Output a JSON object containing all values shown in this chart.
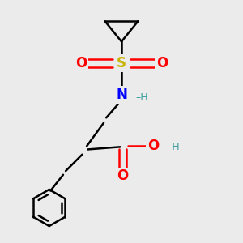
{
  "background_color": "#ebebeb",
  "bond_color": "#000000",
  "S_color": "#c8b400",
  "O_color": "#ff0000",
  "N_color": "#0000ff",
  "H_color": "#3a9e9e",
  "line_width": 1.8,
  "figsize": [
    3.0,
    3.0
  ],
  "dpi": 100,
  "xlim": [
    0.0,
    10.0
  ],
  "ylim": [
    0.0,
    10.0
  ]
}
